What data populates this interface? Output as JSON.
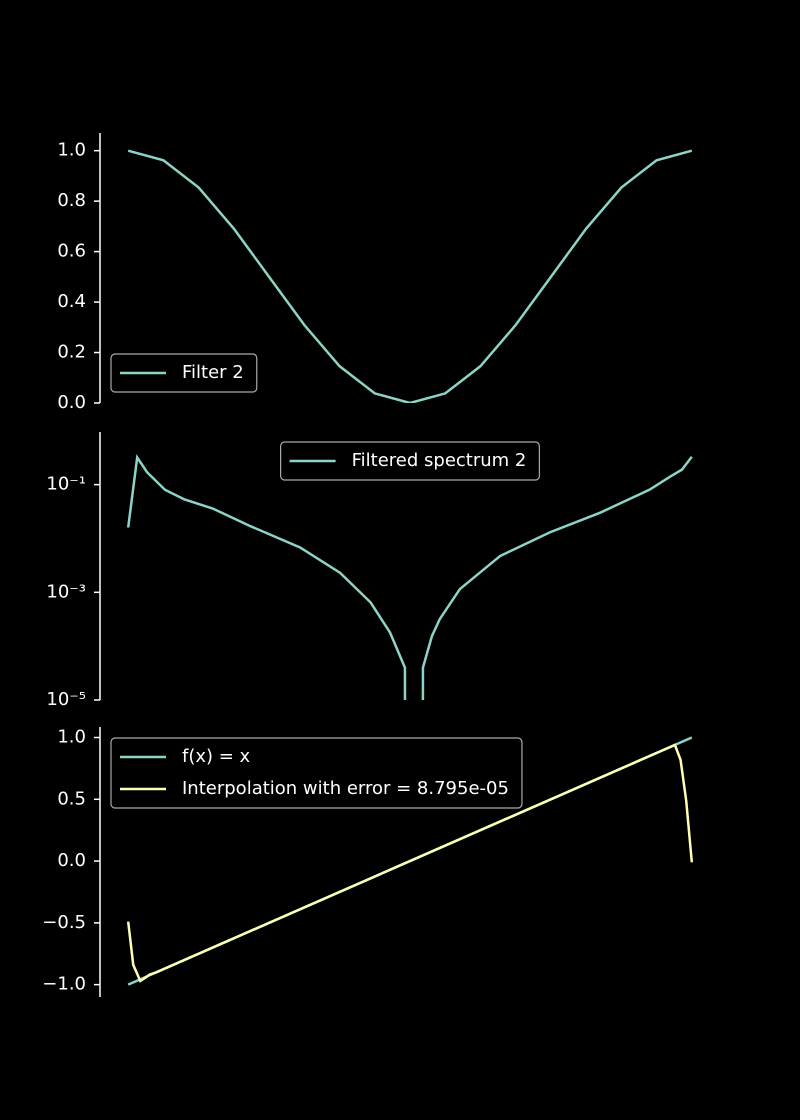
{
  "chart_data": [
    {
      "type": "line",
      "legend": "lower left",
      "grid": false,
      "yscale": "linear",
      "xlim": [
        -1.1,
        1.1
      ],
      "ylim": [
        0,
        1.07
      ],
      "yticks": [
        {
          "value": 0,
          "label": "0.0"
        },
        {
          "value": 0.2,
          "label": "0.2"
        },
        {
          "value": 0.4,
          "label": "0.4"
        },
        {
          "value": 0.6,
          "label": "0.6"
        },
        {
          "value": 0.8,
          "label": "0.8"
        },
        {
          "value": 1,
          "label": "1.0"
        }
      ],
      "series": [
        {
          "name": "Filter 2",
          "color": "#8dd3c7",
          "x": [
            -1,
            -0.875,
            -0.75,
            -0.625,
            -0.5,
            -0.375,
            -0.25,
            -0.125,
            0,
            0.125,
            0.25,
            0.375,
            0.5,
            0.625,
            0.75,
            0.875,
            1
          ],
          "values": [
            1,
            0.962,
            0.854,
            0.691,
            0.5,
            0.309,
            0.146,
            0.038,
            0,
            0.038,
            0.146,
            0.309,
            0.5,
            0.691,
            0.854,
            0.962,
            1
          ]
        }
      ]
    },
    {
      "type": "line",
      "legend": "upper center",
      "grid": false,
      "yscale": "log",
      "xlim": [
        -1.1,
        1.1
      ],
      "ylim": [
        1e-05,
        0.95
      ],
      "yticks": [
        {
          "value": 0.1,
          "label": "10⁻¹"
        },
        {
          "value": 0.001,
          "label": "10⁻³"
        },
        {
          "value": 1e-05,
          "label": "10⁻⁵"
        }
      ],
      "series": [
        {
          "name": "Filtered spectrum 2",
          "color": "#8dd3c7",
          "x": [
            -1,
            -0.968,
            -0.933,
            -0.869,
            -0.8,
            -0.7,
            -0.567,
            -0.39,
            -0.248,
            -0.14,
            -0.071,
            -0.018,
            -0.017,
            0,
            0.045,
            0.046,
            0.078,
            0.106,
            0.177,
            0.319,
            0.496,
            0.674,
            0.851,
            0.922,
            0.965,
            1
          ],
          "values": [
            0.016,
            0.32,
            0.17,
            0.08,
            0.053,
            0.036,
            0.017,
            0.0068,
            0.0023,
            0.00065,
            0.00018,
            4e-05,
            1e-08,
            null,
            1e-08,
            4e-05,
            0.000155,
            0.00032,
            0.00115,
            0.0047,
            0.013,
            0.03,
            0.081,
            0.14,
            0.19,
            0.33
          ]
        }
      ]
    },
    {
      "type": "line",
      "legend": "upper left",
      "grid": false,
      "yscale": "linear",
      "xlim": [
        -1.1,
        1.1
      ],
      "ylim": [
        -1.1,
        1.085
      ],
      "yticks": [
        {
          "value": -1,
          "label": "−1.0"
        },
        {
          "value": -0.5,
          "label": "−0.5"
        },
        {
          "value": 0,
          "label": "0.0"
        },
        {
          "value": 0.5,
          "label": "0.5"
        },
        {
          "value": 1,
          "label": "1.0"
        }
      ],
      "series": [
        {
          "name": "f(x) = x",
          "color": "#8dd3c7",
          "x": [
            -1,
            1
          ],
          "values": [
            -1,
            1
          ]
        },
        {
          "name": "Interpolation with error = 8.795e-05",
          "color": "#ffffb3",
          "x": [
            -1,
            -0.982,
            -0.957,
            -0.936,
            -0.925,
            -0.9,
            0.9,
            0.94,
            0.96,
            0.98,
            1
          ],
          "values": [
            -0.49,
            -0.84,
            -0.97,
            -0.94,
            -0.92,
            -0.9,
            0.9,
            0.94,
            0.82,
            0.49,
            -0.01
          ]
        }
      ]
    }
  ]
}
